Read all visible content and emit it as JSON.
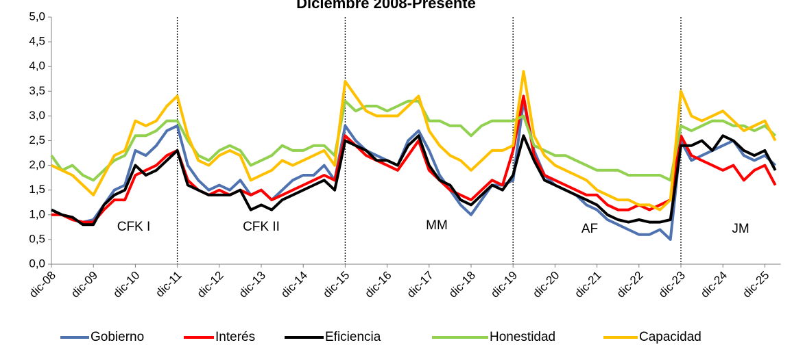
{
  "chart_data": {
    "type": "line",
    "title": "Diciembre 2008-Presente",
    "categories": [
      "dic-08",
      null,
      null,
      null,
      "dic-09",
      null,
      null,
      null,
      "dic-10",
      null,
      null,
      null,
      "dic-11",
      null,
      null,
      null,
      "dic-12",
      null,
      null,
      null,
      "dic-13",
      null,
      null,
      null,
      "dic-14",
      null,
      null,
      null,
      "dic-15",
      null,
      null,
      null,
      "dic-16",
      null,
      null,
      null,
      "dic-17",
      null,
      null,
      null,
      "dic-18",
      null,
      null,
      null,
      "dic-19",
      null,
      null,
      null,
      "dic-20",
      null,
      null,
      null,
      "dic-21",
      null,
      null,
      null,
      "dic-22",
      null,
      null,
      null,
      "dic-23",
      null,
      null,
      null,
      "dic-24",
      null,
      null,
      null,
      "dic-25",
      null
    ],
    "ylim": [
      0,
      5
    ],
    "yticks": [
      {
        "value": 0,
        "label": "0,0"
      },
      {
        "value": 0.5,
        "label": "0,5"
      },
      {
        "value": 1,
        "label": "1,0"
      },
      {
        "value": 1.5,
        "label": "1,5"
      },
      {
        "value": 2,
        "label": "2,0"
      },
      {
        "value": 2.5,
        "label": "2,5"
      },
      {
        "value": 3,
        "label": "3,0"
      },
      {
        "value": 3.5,
        "label": "3,5"
      },
      {
        "value": 4,
        "label": "4,0"
      },
      {
        "value": 4.5,
        "label": "4,5"
      },
      {
        "value": 5,
        "label": "5,0"
      }
    ],
    "annotations": [
      "CFK I",
      "CFK II",
      "MM",
      "AF",
      "JM"
    ],
    "series": [
      {
        "name": "Gobierno",
        "color": "#4f72b0",
        "values": [
          1.1,
          1.0,
          0.9,
          0.85,
          0.9,
          1.2,
          1.5,
          1.6,
          2.3,
          2.2,
          2.4,
          2.7,
          2.8,
          2.0,
          1.7,
          1.5,
          1.6,
          1.5,
          1.7,
          1.4,
          1.5,
          1.3,
          1.5,
          1.7,
          1.8,
          1.8,
          2.0,
          1.7,
          2.8,
          2.5,
          2.3,
          2.2,
          2.1,
          2.0,
          2.5,
          2.7,
          2.3,
          1.8,
          1.5,
          1.2,
          1.0,
          1.3,
          1.6,
          1.6,
          1.7,
          3.3,
          2.3,
          1.8,
          1.6,
          1.5,
          1.4,
          1.2,
          1.1,
          0.9,
          0.8,
          0.7,
          0.6,
          0.6,
          0.7,
          0.5,
          2.5,
          2.1,
          2.2,
          2.3,
          2.4,
          2.5,
          2.2,
          2.1,
          2.2,
          2.0
        ]
      },
      {
        "name": "Interés",
        "color": "#ff0000",
        "values": [
          1.0,
          1.0,
          0.9,
          0.85,
          0.85,
          1.1,
          1.3,
          1.3,
          1.8,
          1.9,
          2.0,
          2.2,
          2.3,
          1.7,
          1.5,
          1.4,
          1.5,
          1.4,
          1.5,
          1.4,
          1.5,
          1.3,
          1.4,
          1.5,
          1.6,
          1.7,
          1.8,
          1.7,
          2.6,
          2.4,
          2.2,
          2.1,
          2.0,
          1.9,
          2.2,
          2.5,
          1.9,
          1.7,
          1.5,
          1.4,
          1.3,
          1.5,
          1.7,
          1.6,
          2.3,
          3.4,
          2.2,
          1.8,
          1.7,
          1.6,
          1.5,
          1.4,
          1.4,
          1.2,
          1.1,
          1.1,
          1.2,
          1.1,
          1.2,
          1.3,
          2.6,
          2.2,
          2.1,
          2.0,
          1.9,
          2.0,
          1.7,
          1.9,
          2.0,
          1.6
        ]
      },
      {
        "name": "Eficiencia",
        "color": "#000000",
        "values": [
          1.1,
          1.0,
          0.95,
          0.8,
          0.8,
          1.2,
          1.4,
          1.5,
          2.0,
          1.8,
          1.9,
          2.1,
          2.3,
          1.6,
          1.5,
          1.4,
          1.4,
          1.4,
          1.5,
          1.1,
          1.2,
          1.1,
          1.3,
          1.4,
          1.5,
          1.6,
          1.7,
          1.5,
          2.5,
          2.4,
          2.3,
          2.1,
          2.1,
          2.0,
          2.4,
          2.6,
          2.0,
          1.7,
          1.6,
          1.3,
          1.2,
          1.4,
          1.6,
          1.5,
          1.8,
          2.6,
          2.1,
          1.7,
          1.6,
          1.5,
          1.4,
          1.3,
          1.2,
          1.0,
          0.9,
          0.85,
          0.9,
          0.85,
          0.85,
          0.9,
          2.4,
          2.4,
          2.5,
          2.3,
          2.6,
          2.5,
          2.3,
          2.2,
          2.3,
          1.9
        ]
      },
      {
        "name": "Honestidad",
        "color": "#92d050",
        "values": [
          2.2,
          1.9,
          2.0,
          1.8,
          1.7,
          1.9,
          2.1,
          2.2,
          2.6,
          2.6,
          2.7,
          2.9,
          2.9,
          2.5,
          2.2,
          2.1,
          2.3,
          2.4,
          2.3,
          2.0,
          2.1,
          2.2,
          2.4,
          2.3,
          2.3,
          2.4,
          2.4,
          2.2,
          3.3,
          3.1,
          3.2,
          3.2,
          3.1,
          3.2,
          3.3,
          3.3,
          2.9,
          2.9,
          2.8,
          2.8,
          2.6,
          2.8,
          2.9,
          2.9,
          2.9,
          3.0,
          2.4,
          2.3,
          2.2,
          2.2,
          2.1,
          2.0,
          1.9,
          1.9,
          1.9,
          1.8,
          1.8,
          1.8,
          1.8,
          1.7,
          2.8,
          2.7,
          2.8,
          2.9,
          2.9,
          2.8,
          2.8,
          2.7,
          2.8,
          2.6
        ]
      },
      {
        "name": "Capacidad",
        "color": "#ffc000",
        "values": [
          2.0,
          1.9,
          1.8,
          1.6,
          1.4,
          1.8,
          2.2,
          2.3,
          2.9,
          2.8,
          2.9,
          3.2,
          3.4,
          2.6,
          2.1,
          2.0,
          2.2,
          2.3,
          2.2,
          1.7,
          1.8,
          1.9,
          2.1,
          2.0,
          2.1,
          2.2,
          2.3,
          2.0,
          3.7,
          3.4,
          3.1,
          3.0,
          3.0,
          3.0,
          3.2,
          3.4,
          2.7,
          2.4,
          2.2,
          2.1,
          1.9,
          2.1,
          2.3,
          2.3,
          2.4,
          3.9,
          2.6,
          2.2,
          2.0,
          1.9,
          1.8,
          1.7,
          1.5,
          1.4,
          1.3,
          1.3,
          1.2,
          1.2,
          1.1,
          1.3,
          3.5,
          3.0,
          2.9,
          3.0,
          3.1,
          2.9,
          2.7,
          2.8,
          2.9,
          2.5
        ]
      }
    ]
  }
}
